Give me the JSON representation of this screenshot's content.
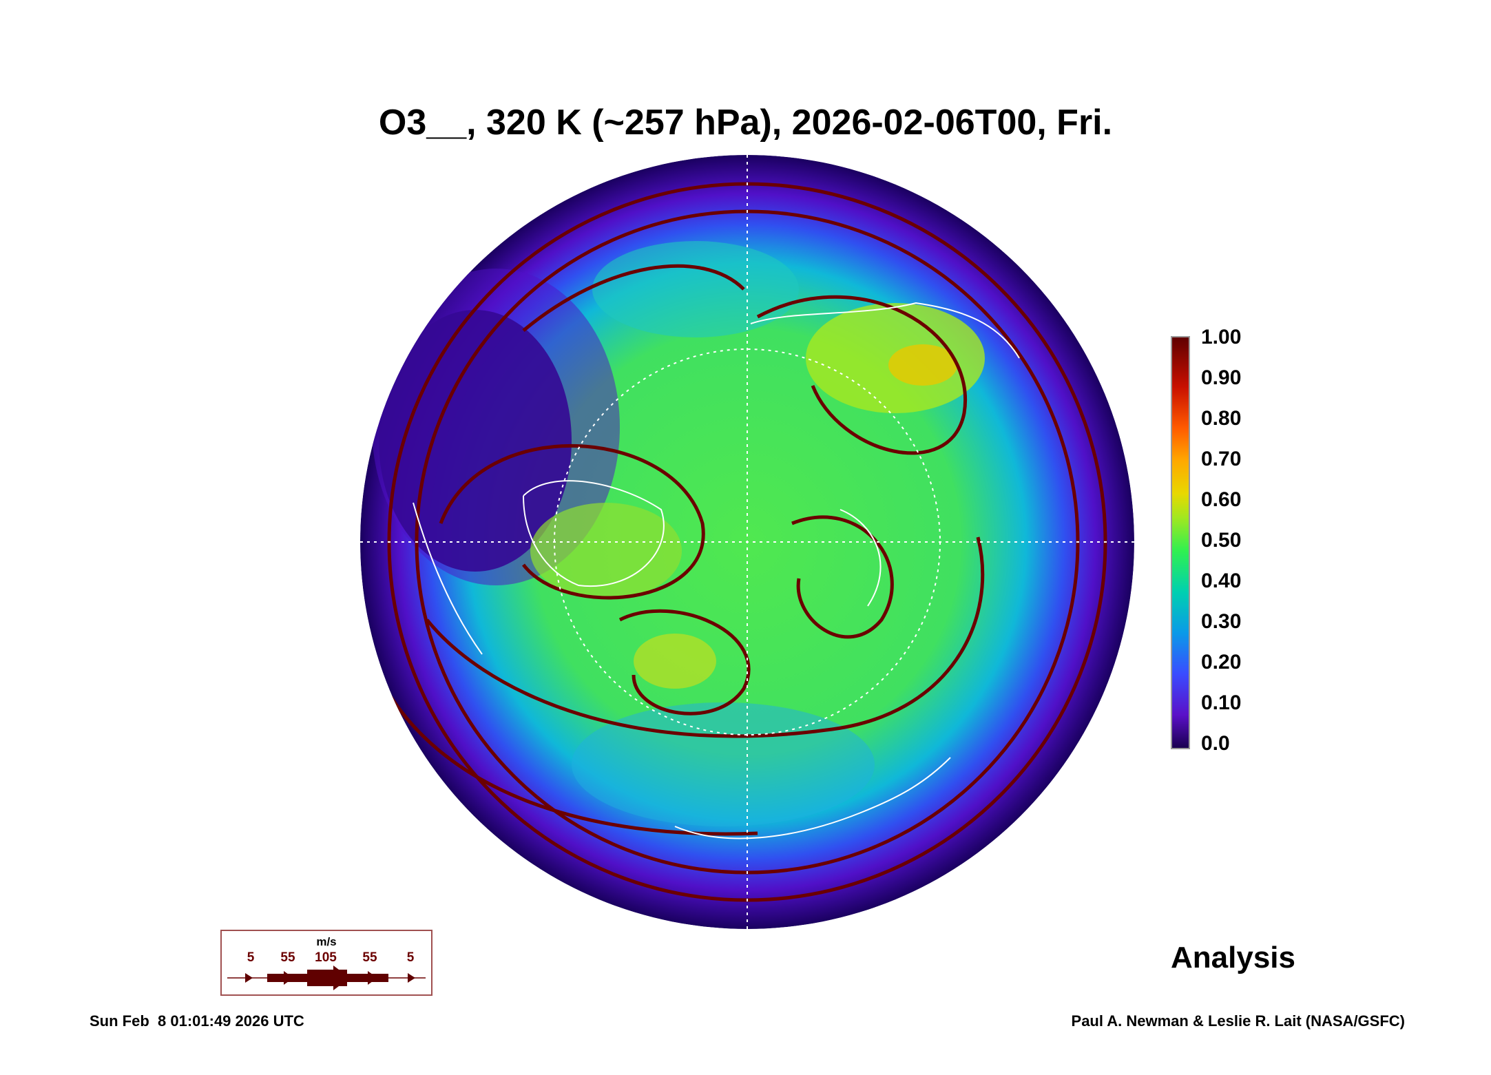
{
  "title": "O3__, 320 K (~257 hPa), 2026-02-06T00, Fri.",
  "colorbar": {
    "ticks": [
      "1.00",
      "0.90",
      "0.80",
      "0.70",
      "0.60",
      "0.50",
      "0.40",
      "0.30",
      "0.20",
      "0.10",
      "0.0"
    ],
    "range": [
      0.0,
      1.0
    ]
  },
  "wind_legend": {
    "unit": "m/s",
    "values": [
      "5",
      "55",
      "105",
      "55",
      "5"
    ],
    "color": "#600000"
  },
  "label": "Analysis",
  "footer": {
    "timestamp": "Sun Feb  8 01:01:49 2026 UTC",
    "credit": "Paul A. Newman & Leslie R. Lait (NASA/GSFC)"
  }
}
